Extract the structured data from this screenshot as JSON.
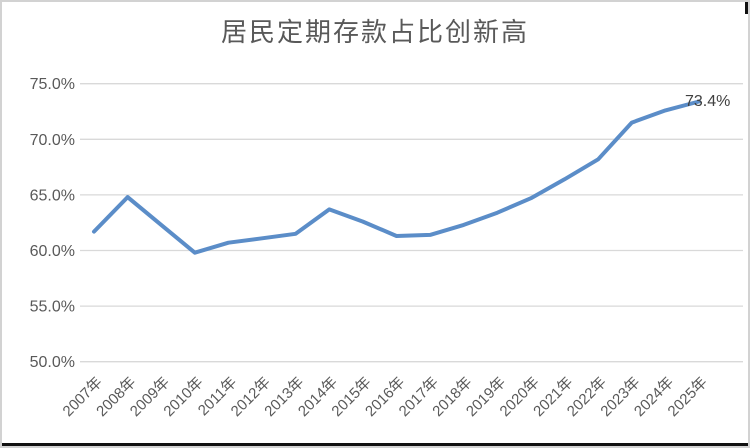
{
  "chart_data": {
    "type": "line",
    "title": "居民定期存款占比创新高",
    "categories": [
      "2007年",
      "2008年",
      "2009年",
      "2010年",
      "2011年",
      "2012年",
      "2013年",
      "2014年",
      "2015年",
      "2016年",
      "2017年",
      "2018年",
      "2019年",
      "2020年",
      "2021年",
      "2022年",
      "2023年",
      "2024年",
      "2025年"
    ],
    "values": [
      61.7,
      64.8,
      62.3,
      59.8,
      60.7,
      61.1,
      61.5,
      63.7,
      62.6,
      61.3,
      61.4,
      62.3,
      63.4,
      64.7,
      66.4,
      68.2,
      71.5,
      72.6,
      73.4
    ],
    "yticks": [
      "50.0%",
      "55.0%",
      "60.0%",
      "65.0%",
      "70.0%",
      "75.0%"
    ],
    "ylim": [
      50,
      75
    ],
    "xlabel": "",
    "ylabel": "",
    "grid": true,
    "legend": "none",
    "x_tick_rotation": -45,
    "end_label": "73.4%",
    "colors": {
      "line": "#5b8dc8",
      "grid": "#d9d9d9",
      "axis_text": "#595959",
      "title_text": "#595959",
      "end_label_text": "#404040",
      "chart_border": "#d2d2d2",
      "edge_bar": "#111111",
      "background": "#ffffff"
    }
  }
}
